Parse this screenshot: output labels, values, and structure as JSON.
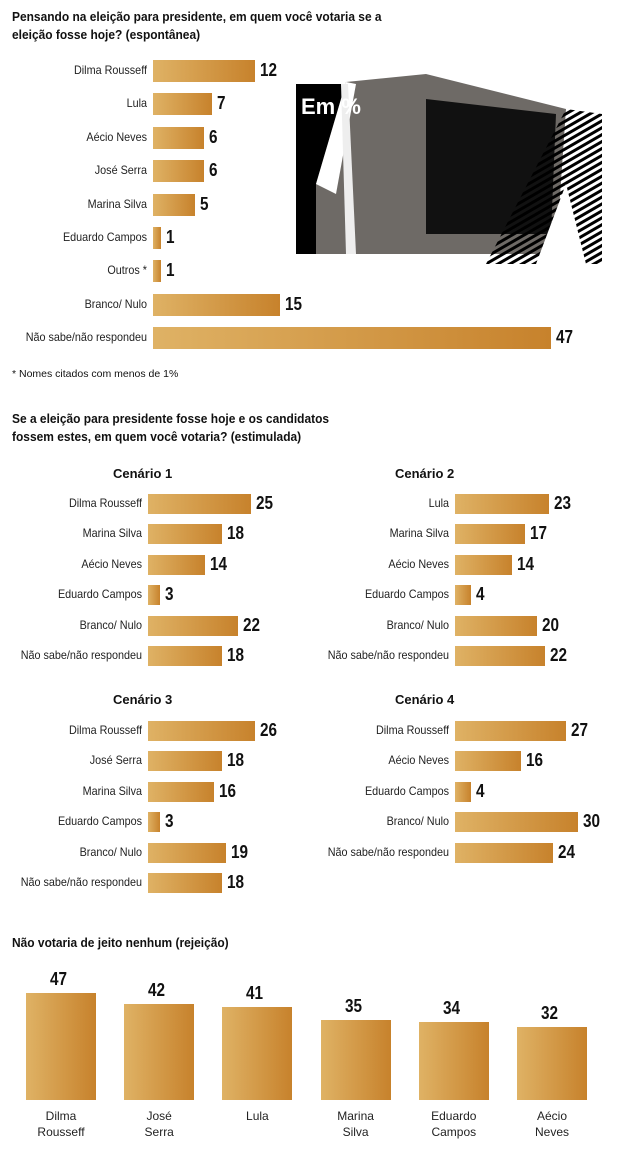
{
  "photo": {
    "caption": "Em %"
  },
  "chart_data": [
    {
      "type": "bar",
      "orientation": "horizontal",
      "title": "Pensando na eleição para presidente, em quem você votaria se a eleição fosse hoje? (espontânea)",
      "categories": [
        "Dilma Rousseff",
        "Lula",
        "Aécio Neves",
        "José Serra",
        "Marina Silva",
        "Eduardo Campos",
        "Outros *",
        "Branco/ Nulo",
        "Não sabe/não respondeu"
      ],
      "values": [
        12,
        7,
        6,
        6,
        5,
        1,
        1,
        15,
        47
      ],
      "unit": "%",
      "note": "* Nomes citados com menos de 1%"
    },
    {
      "type": "bar",
      "orientation": "horizontal",
      "title": "Se a eleição para presidente fosse hoje e os candidatos fossem estes, em quem você votaria? (estimulada)",
      "panels": [
        {
          "name": "Cenário 1",
          "categories": [
            "Dilma Rousseff",
            "Marina Silva",
            "Aécio Neves",
            "Eduardo Campos",
            "Branco/ Nulo",
            "Não sabe/não respondeu"
          ],
          "values": [
            25,
            18,
            14,
            3,
            22,
            18
          ]
        },
        {
          "name": "Cenário 2",
          "categories": [
            "Lula",
            "Marina Silva",
            "Aécio Neves",
            "Eduardo Campos",
            "Branco/ Nulo",
            "Não sabe/não respondeu"
          ],
          "values": [
            23,
            17,
            14,
            4,
            20,
            22
          ]
        },
        {
          "name": "Cenário 3",
          "categories": [
            "Dilma Rousseff",
            "José Serra",
            "Marina Silva",
            "Eduardo Campos",
            "Branco/ Nulo",
            "Não sabe/não respondeu"
          ],
          "values": [
            26,
            18,
            16,
            3,
            19,
            18
          ]
        },
        {
          "name": "Cenário 4",
          "categories": [
            "Dilma Rousseff",
            "Aécio Neves",
            "Eduardo Campos",
            "Branco/ Nulo",
            "Não sabe/não respondeu"
          ],
          "values": [
            27,
            16,
            4,
            30,
            24
          ]
        }
      ]
    },
    {
      "type": "bar",
      "orientation": "vertical",
      "title": "Não votaria de jeito nenhum (rejeição)",
      "categories": [
        "Dilma Rousseff",
        "José Serra",
        "Lula",
        "Marina Silva",
        "Eduardo Campos",
        "Aécio Neves"
      ],
      "values": [
        47,
        42,
        41,
        35,
        34,
        32
      ]
    }
  ]
}
